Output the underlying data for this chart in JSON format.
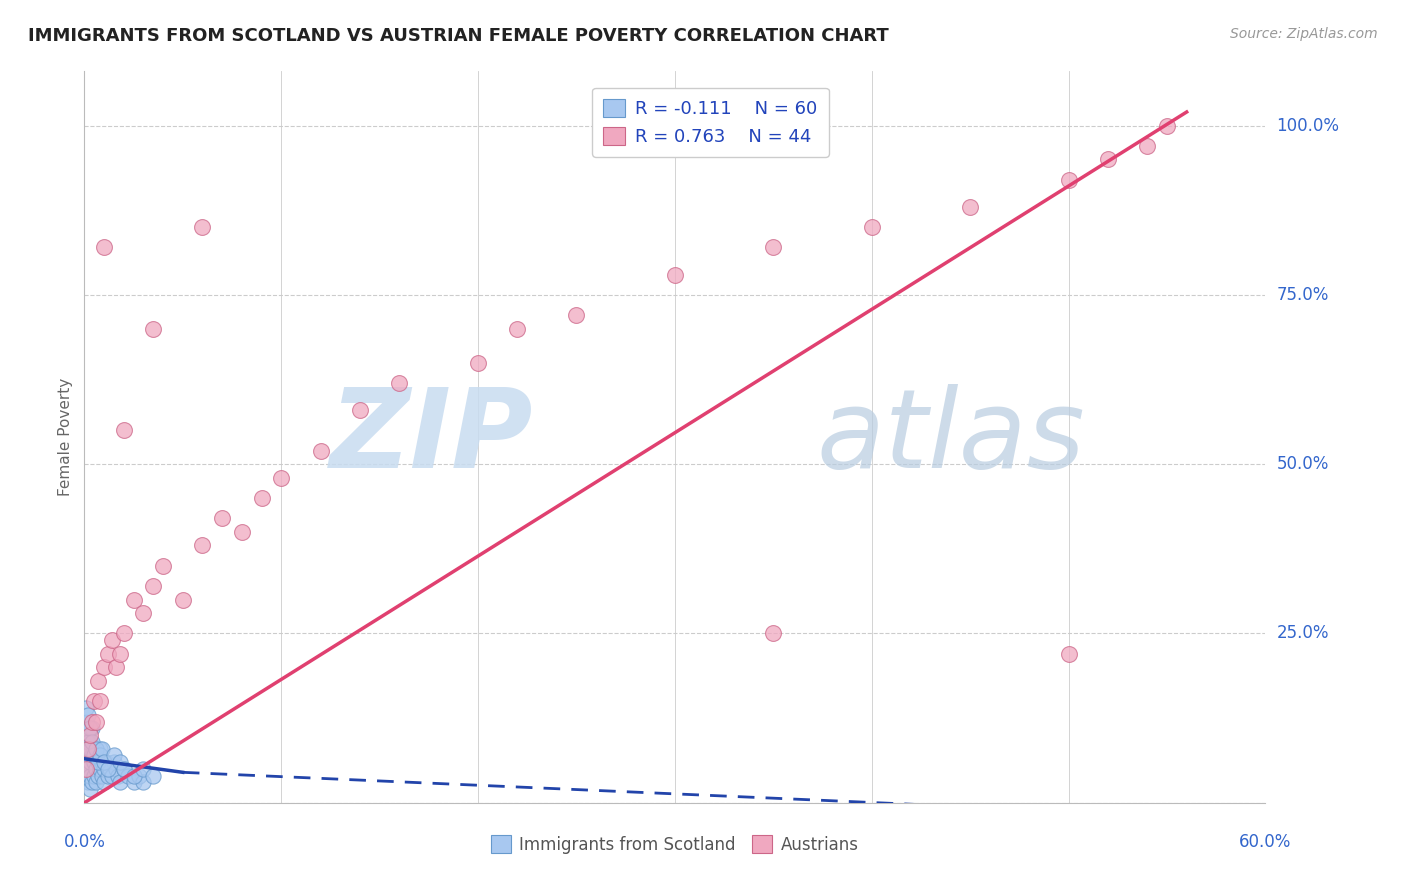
{
  "title": "IMMIGRANTS FROM SCOTLAND VS AUSTRIAN FEMALE POVERTY CORRELATION CHART",
  "source": "Source: ZipAtlas.com",
  "ylabel": "Female Poverty",
  "xmin": 0.0,
  "xmax": 0.6,
  "ymin": 0.0,
  "ymax": 1.08,
  "legend_r1": "R = -0.111",
  "legend_n1": "N = 60",
  "legend_r2": "R = 0.763",
  "legend_n2": "N = 44",
  "color_blue": "#A8C8F0",
  "color_pink": "#F0A8C0",
  "color_blue_line": "#2244AA",
  "color_pink_line": "#E04070",
  "background_color": "#FFFFFF",
  "grid_color": "#CCCCCC",
  "blue_x": [
    0.001,
    0.001,
    0.001,
    0.002,
    0.002,
    0.002,
    0.002,
    0.003,
    0.003,
    0.003,
    0.003,
    0.004,
    0.004,
    0.004,
    0.005,
    0.005,
    0.005,
    0.006,
    0.006,
    0.007,
    0.007,
    0.008,
    0.008,
    0.009,
    0.009,
    0.01,
    0.01,
    0.011,
    0.012,
    0.013,
    0.014,
    0.015,
    0.016,
    0.017,
    0.018,
    0.02,
    0.022,
    0.025,
    0.028,
    0.03,
    0.001,
    0.001,
    0.002,
    0.002,
    0.003,
    0.003,
    0.004,
    0.005,
    0.006,
    0.007,
    0.008,
    0.009,
    0.01,
    0.012,
    0.015,
    0.018,
    0.02,
    0.025,
    0.03,
    0.035
  ],
  "blue_y": [
    0.04,
    0.06,
    0.08,
    0.03,
    0.05,
    0.07,
    0.1,
    0.02,
    0.04,
    0.06,
    0.09,
    0.03,
    0.07,
    0.11,
    0.04,
    0.06,
    0.08,
    0.03,
    0.05,
    0.04,
    0.07,
    0.05,
    0.08,
    0.04,
    0.06,
    0.03,
    0.05,
    0.06,
    0.04,
    0.05,
    0.04,
    0.06,
    0.05,
    0.04,
    0.03,
    0.05,
    0.04,
    0.03,
    0.04,
    0.03,
    0.12,
    0.14,
    0.09,
    0.13,
    0.08,
    0.11,
    0.09,
    0.07,
    0.08,
    0.06,
    0.07,
    0.08,
    0.06,
    0.05,
    0.07,
    0.06,
    0.05,
    0.04,
    0.05,
    0.04
  ],
  "pink_x": [
    0.001,
    0.002,
    0.003,
    0.004,
    0.005,
    0.006,
    0.007,
    0.008,
    0.01,
    0.012,
    0.014,
    0.016,
    0.018,
    0.02,
    0.025,
    0.03,
    0.035,
    0.04,
    0.05,
    0.06,
    0.07,
    0.08,
    0.09,
    0.1,
    0.12,
    0.14,
    0.16,
    0.2,
    0.22,
    0.25,
    0.3,
    0.35,
    0.4,
    0.45,
    0.5,
    0.52,
    0.54,
    0.55,
    0.01,
    0.02,
    0.035,
    0.06,
    0.5,
    0.35
  ],
  "pink_y": [
    0.05,
    0.08,
    0.1,
    0.12,
    0.15,
    0.12,
    0.18,
    0.15,
    0.2,
    0.22,
    0.24,
    0.2,
    0.22,
    0.25,
    0.3,
    0.28,
    0.32,
    0.35,
    0.3,
    0.38,
    0.42,
    0.4,
    0.45,
    0.48,
    0.52,
    0.58,
    0.62,
    0.65,
    0.7,
    0.72,
    0.78,
    0.82,
    0.85,
    0.88,
    0.92,
    0.95,
    0.97,
    1.0,
    0.82,
    0.55,
    0.7,
    0.85,
    0.22,
    0.25
  ],
  "watermark_zip_color": "#C8DCF0",
  "watermark_atlas_color": "#B8CCE0"
}
